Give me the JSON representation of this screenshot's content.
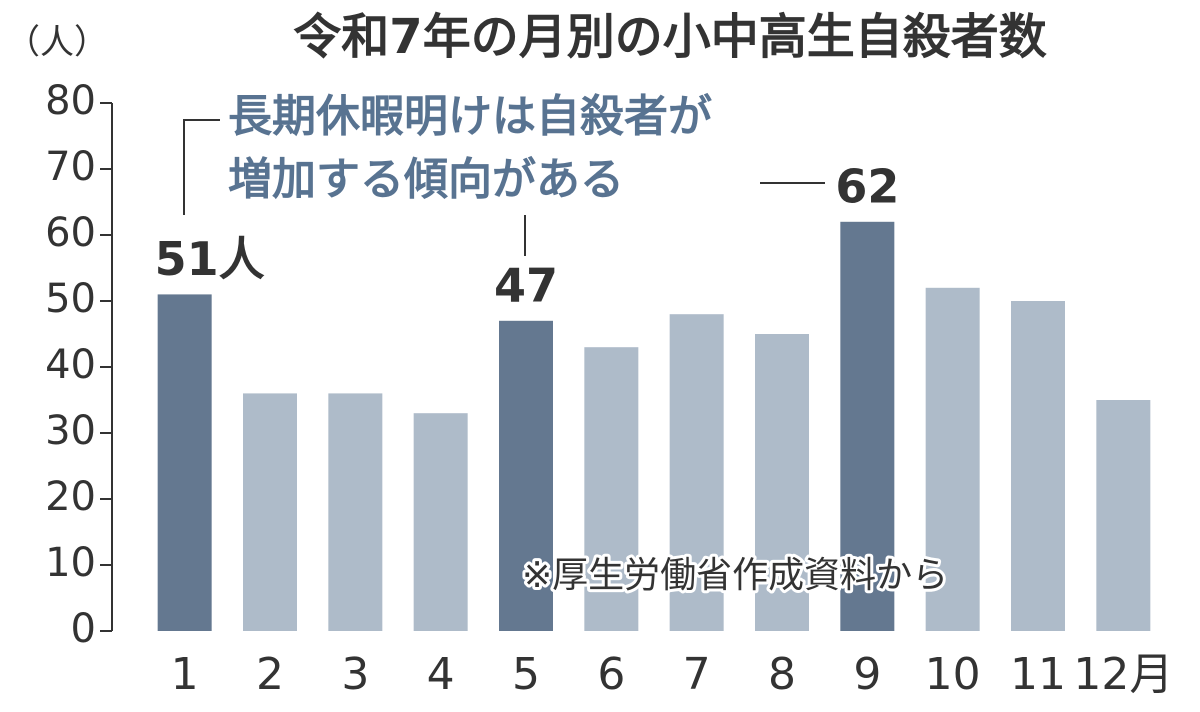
{
  "chart_data": {
    "type": "bar",
    "title": "令和7年の月別の小中高生自殺者数",
    "y_axis_label": "（人）",
    "annotation": [
      "長期休暇明けは自殺者が",
      "増加する傾向がある"
    ],
    "source": "※厚生労働省作成資料から",
    "categories": [
      "1",
      "2",
      "3",
      "4",
      "5",
      "6",
      "7",
      "8",
      "9",
      "10",
      "11",
      "12月"
    ],
    "values": [
      51,
      36,
      36,
      33,
      47,
      43,
      48,
      45,
      62,
      52,
      50,
      35
    ],
    "value_labels": [
      "51人",
      null,
      null,
      null,
      "47",
      null,
      null,
      null,
      "62",
      null,
      null,
      null
    ],
    "colors": [
      "#647890",
      "#aebbc9",
      "#aebbc9",
      "#aebbc9",
      "#647890",
      "#aebbc9",
      "#aebbc9",
      "#aebbc9",
      "#647890",
      "#aebbc9",
      "#aebbc9",
      "#aebbc9"
    ],
    "ylim": [
      0,
      80
    ],
    "yticks": [
      0,
      10,
      20,
      30,
      40,
      50,
      60,
      70,
      80
    ],
    "grid": false
  }
}
